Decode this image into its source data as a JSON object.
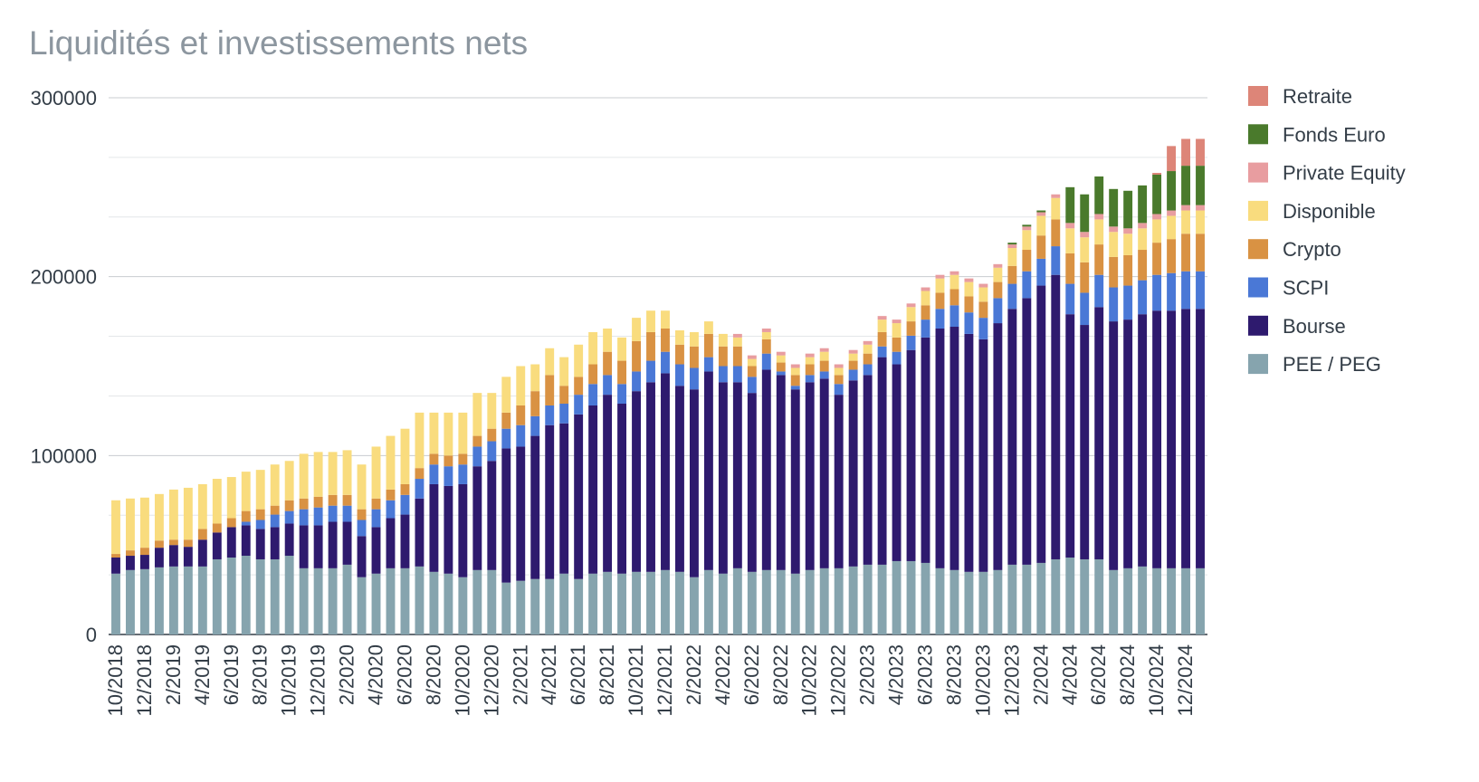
{
  "chart_data": {
    "type": "bar",
    "stacked": true,
    "title": "Liquidités et investissements nets",
    "xlabel": "",
    "ylabel": "",
    "ylim": [
      0,
      300000
    ],
    "y_ticks": [
      "300000",
      "200000",
      "100000",
      "0"
    ],
    "y_tick_values": [
      300000,
      200000,
      100000,
      0
    ],
    "grid": true,
    "legend_position": "right",
    "x_tick_labels": [
      "10/2018",
      "12/2018",
      "2/2019",
      "4/2019",
      "6/2019",
      "8/2019",
      "10/2019",
      "12/2019",
      "2/2020",
      "4/2020",
      "6/2020",
      "8/2020",
      "10/2020",
      "12/2020",
      "2/2021",
      "4/2021",
      "6/2021",
      "8/2021",
      "10/2021",
      "12/2021",
      "2/2022",
      "4/2022",
      "6/2022",
      "8/2022",
      "10/2022",
      "12/2022",
      "2/2023",
      "4/2023",
      "6/2023",
      "8/2023",
      "10/2023",
      "12/2023",
      "2/2024",
      "4/2024",
      "6/2024",
      "8/2024",
      "10/2024",
      "12/2024"
    ],
    "categories": [
      "10/2018",
      "11/2018",
      "12/2018",
      "1/2019",
      "2/2019",
      "3/2019",
      "4/2019",
      "5/2019",
      "6/2019",
      "7/2019",
      "8/2019",
      "9/2019",
      "10/2019",
      "11/2019",
      "12/2019",
      "1/2020",
      "2/2020",
      "3/2020",
      "4/2020",
      "5/2020",
      "6/2020",
      "7/2020",
      "8/2020",
      "9/2020",
      "10/2020",
      "11/2020",
      "12/2020",
      "1/2021",
      "2/2021",
      "3/2021",
      "4/2021",
      "5/2021",
      "6/2021",
      "7/2021",
      "8/2021",
      "9/2021",
      "10/2021",
      "11/2021",
      "12/2021",
      "1/2022",
      "2/2022",
      "3/2022",
      "4/2022",
      "5/2022",
      "6/2022",
      "7/2022",
      "8/2022",
      "9/2022",
      "10/2022",
      "11/2022",
      "12/2022",
      "1/2023",
      "2/2023",
      "3/2023",
      "4/2023",
      "5/2023",
      "6/2023",
      "7/2023",
      "8/2023",
      "9/2023",
      "10/2023",
      "11/2023",
      "12/2023",
      "1/2024",
      "2/2024",
      "3/2024",
      "4/2024",
      "5/2024",
      "6/2024",
      "7/2024",
      "8/2024",
      "9/2024",
      "10/2024",
      "11/2024",
      "12/2024",
      "1/2025"
    ],
    "series": [
      {
        "name": "PEE / PEG",
        "color": "#86a4ae",
        "values": [
          34000,
          36000,
          36500,
          37500,
          38000,
          38000,
          38000,
          42000,
          43000,
          44000,
          42000,
          42000,
          44000,
          37000,
          37000,
          37000,
          39000,
          32000,
          34000,
          37000,
          37000,
          38000,
          35000,
          34000,
          32000,
          36000,
          36000,
          29000,
          30000,
          31000,
          31000,
          34000,
          31000,
          34000,
          35000,
          34000,
          35000,
          35000,
          36000,
          35000,
          32000,
          36000,
          34000,
          37000,
          35000,
          36000,
          36000,
          34000,
          36000,
          37000,
          37000,
          38000,
          39000,
          39000,
          41000,
          41000,
          40000,
          37000,
          36000,
          35000,
          35000,
          36000,
          39000,
          39000,
          40000,
          42000,
          43000,
          42000,
          42000,
          36000,
          37000,
          38000,
          37000,
          37000,
          37000,
          37000
        ]
      },
      {
        "name": "Bourse",
        "color": "#2e1a6e",
        "values": [
          9000,
          8000,
          8000,
          11000,
          12000,
          11000,
          15000,
          15000,
          17000,
          17000,
          17000,
          18000,
          18000,
          24000,
          24000,
          26000,
          24000,
          23000,
          26000,
          28000,
          30000,
          38000,
          49000,
          49000,
          52000,
          58000,
          61000,
          75000,
          75000,
          80000,
          86000,
          84000,
          92000,
          94000,
          99000,
          95000,
          101000,
          106000,
          110000,
          104000,
          105000,
          111000,
          107000,
          104000,
          100000,
          112000,
          109000,
          103000,
          105000,
          106000,
          97000,
          104000,
          106000,
          116000,
          110000,
          118000,
          126000,
          134000,
          136000,
          133000,
          130000,
          138000,
          143000,
          149000,
          155000,
          159000,
          136000,
          131000,
          141000,
          139000,
          139000,
          141000,
          144000,
          144000,
          145000,
          145000
        ]
      },
      {
        "name": "SCPI",
        "color": "#4a78d6",
        "values": [
          0,
          0,
          0,
          0,
          0,
          0,
          0,
          0,
          0,
          2000,
          5000,
          7000,
          7000,
          9000,
          10000,
          9000,
          9000,
          9000,
          10000,
          10000,
          11000,
          11000,
          11000,
          11000,
          11000,
          11000,
          11000,
          11000,
          12000,
          11000,
          11000,
          11000,
          11000,
          12000,
          11000,
          11000,
          11000,
          12000,
          12000,
          12000,
          12000,
          8000,
          9000,
          9000,
          9000,
          9000,
          2000,
          2000,
          4000,
          4000,
          6000,
          6000,
          6000,
          6000,
          7000,
          8000,
          10000,
          11000,
          12000,
          12000,
          12000,
          14000,
          14000,
          15000,
          15000,
          16000,
          17000,
          18000,
          18000,
          19000,
          19000,
          19000,
          20000,
          21000,
          21000,
          21000
        ]
      },
      {
        "name": "Crypto",
        "color": "#d99243",
        "values": [
          2000,
          3000,
          4000,
          4000,
          3000,
          4000,
          6000,
          5000,
          5000,
          6000,
          6000,
          5000,
          6000,
          6000,
          6000,
          6000,
          6000,
          6000,
          6000,
          6000,
          6000,
          6000,
          6000,
          6000,
          6000,
          6000,
          7000,
          9000,
          11000,
          14000,
          17000,
          10000,
          10000,
          11000,
          13000,
          13000,
          17000,
          16000,
          13000,
          11000,
          12000,
          13000,
          11000,
          11000,
          6000,
          8000,
          5000,
          6000,
          6000,
          6000,
          5000,
          5000,
          6000,
          8000,
          8000,
          8000,
          8000,
          9000,
          9000,
          9000,
          9000,
          9000,
          10000,
          12000,
          13000,
          15000,
          17000,
          17000,
          17000,
          17000,
          17000,
          17000,
          18000,
          19000,
          21000,
          21000
        ]
      },
      {
        "name": "Disponible",
        "color": "#f9dc7e",
        "values": [
          30000,
          29000,
          28000,
          26000,
          28000,
          29000,
          25000,
          25000,
          23000,
          22000,
          22000,
          23000,
          22000,
          25000,
          25000,
          24000,
          25000,
          25000,
          29000,
          30000,
          31000,
          31000,
          23000,
          24000,
          23000,
          24000,
          20000,
          20000,
          22000,
          15000,
          15000,
          16000,
          18000,
          18000,
          13000,
          13000,
          13000,
          12000,
          10000,
          8000,
          8000,
          7000,
          7000,
          5000,
          4000,
          4000,
          4000,
          4000,
          4000,
          5000,
          4000,
          4000,
          5000,
          7000,
          8000,
          8000,
          8000,
          8000,
          8000,
          8000,
          8000,
          8000,
          10000,
          11000,
          11000,
          12000,
          14000,
          14000,
          14000,
          14000,
          12000,
          12000,
          13000,
          13000,
          13000,
          13000
        ]
      },
      {
        "name": "Private Equity",
        "color": "#e89da0",
        "values": [
          0,
          0,
          0,
          0,
          0,
          0,
          0,
          0,
          0,
          0,
          0,
          0,
          0,
          0,
          0,
          0,
          0,
          0,
          0,
          0,
          0,
          0,
          0,
          0,
          0,
          0,
          0,
          0,
          0,
          0,
          0,
          0,
          0,
          0,
          0,
          0,
          0,
          0,
          0,
          0,
          0,
          0,
          0,
          2000,
          2000,
          2000,
          2000,
          2000,
          2000,
          2000,
          2000,
          2000,
          2000,
          2000,
          2000,
          2000,
          2000,
          2000,
          2000,
          2000,
          2000,
          2000,
          2000,
          2000,
          2000,
          2000,
          3000,
          3000,
          3000,
          3000,
          3000,
          3000,
          3000,
          3000,
          3000,
          3000
        ]
      },
      {
        "name": "Fonds Euro",
        "color": "#4a7a2c",
        "values": [
          0,
          0,
          0,
          0,
          0,
          0,
          0,
          0,
          0,
          0,
          0,
          0,
          0,
          0,
          0,
          0,
          0,
          0,
          0,
          0,
          0,
          0,
          0,
          0,
          0,
          0,
          0,
          0,
          0,
          0,
          0,
          0,
          0,
          0,
          0,
          0,
          0,
          0,
          0,
          0,
          0,
          0,
          0,
          0,
          0,
          0,
          0,
          0,
          0,
          0,
          0,
          0,
          0,
          0,
          0,
          0,
          0,
          0,
          0,
          0,
          0,
          0,
          1000,
          1000,
          1000,
          0,
          20000,
          21000,
          21000,
          21000,
          21000,
          21000,
          22000,
          22000,
          22000,
          22000
        ]
      },
      {
        "name": "Retraite",
        "color": "#dd8578",
        "values": [
          0,
          0,
          0,
          0,
          0,
          0,
          0,
          0,
          0,
          0,
          0,
          0,
          0,
          0,
          0,
          0,
          0,
          0,
          0,
          0,
          0,
          0,
          0,
          0,
          0,
          0,
          0,
          0,
          0,
          0,
          0,
          0,
          0,
          0,
          0,
          0,
          0,
          0,
          0,
          0,
          0,
          0,
          0,
          0,
          0,
          0,
          0,
          0,
          0,
          0,
          0,
          0,
          0,
          0,
          0,
          0,
          0,
          0,
          0,
          0,
          0,
          0,
          0,
          0,
          0,
          0,
          0,
          0,
          0,
          0,
          0,
          0,
          1000,
          14000,
          15000,
          15000
        ]
      }
    ]
  }
}
